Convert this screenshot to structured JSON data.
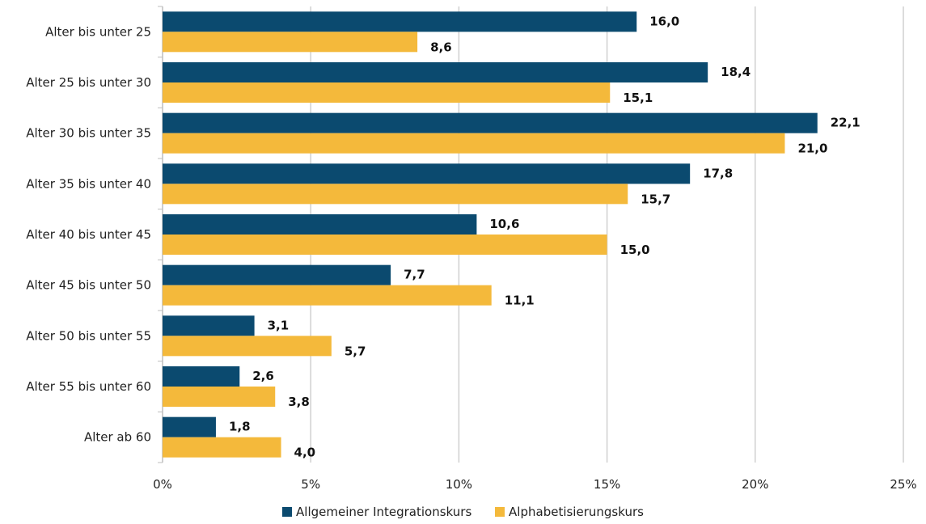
{
  "chart_data": {
    "type": "bar",
    "orientation": "horizontal",
    "categories": [
      "Alter bis unter 25",
      "Alter 25 bis unter 30",
      "Alter 30 bis unter 35",
      "Alter 35 bis unter 40",
      "Alter 40 bis unter 45",
      "Alter 45 bis unter 50",
      "Alter 50 bis unter 55",
      "Alter 55 bis unter 60",
      "Alter ab 60"
    ],
    "series": [
      {
        "name": "Allgemeiner Integrationskurs",
        "color": "#0b4a6f",
        "values": [
          16.0,
          18.4,
          22.1,
          17.8,
          10.6,
          7.7,
          3.1,
          2.6,
          1.8
        ],
        "labels": [
          "16,0",
          "18,4",
          "22,1",
          "17,8",
          "10,6",
          "7,7",
          "3,1",
          "2,6",
          "1,8"
        ]
      },
      {
        "name": "Alphabetisierungskurs",
        "color": "#f4b93b",
        "values": [
          8.6,
          15.1,
          21.0,
          15.7,
          15.0,
          11.1,
          5.7,
          3.8,
          4.0
        ],
        "labels": [
          "8,6",
          "15,1",
          "21,0",
          "15,7",
          "15,0",
          "11,1",
          "5,7",
          "3,8",
          "4,0"
        ]
      }
    ],
    "xlim": [
      0,
      25
    ],
    "xticks": [
      0,
      5,
      10,
      15,
      20,
      25
    ],
    "xtick_labels": [
      "0%",
      "5%",
      "10%",
      "15%",
      "20%",
      "25%"
    ],
    "grid": true,
    "grid_color": "#d0d0d0",
    "legend_position": "bottom"
  }
}
